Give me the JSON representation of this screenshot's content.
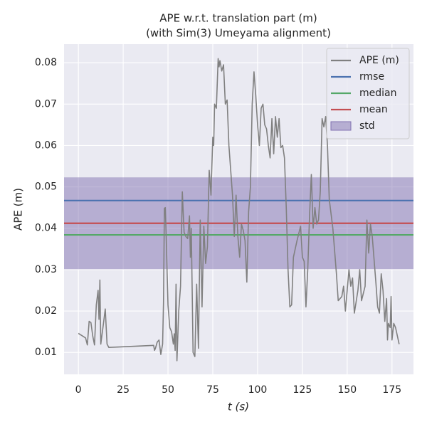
{
  "chart_data": {
    "type": "line",
    "title": "APE w.r.t. translation part (m)",
    "subtitle": "(with Sim(3) Umeyama alignment)",
    "xlabel": "t (s)",
    "ylabel": "APE (m)",
    "xlim": [
      -8,
      187
    ],
    "ylim": [
      0.0047,
      0.0845
    ],
    "xticks": [
      0,
      25,
      50,
      75,
      100,
      125,
      150,
      175
    ],
    "yticks": [
      0.01,
      0.02,
      0.03,
      0.04,
      0.05,
      0.06,
      0.07,
      0.08
    ],
    "grid": true,
    "legend": "upper right",
    "series": [
      {
        "name": "APE (m)",
        "color": "#808080",
        "x": [
          0,
          4,
          5,
          6,
          7,
          8,
          9,
          10,
          11,
          11.5,
          12,
          12.5,
          14,
          15,
          16,
          17,
          42,
          42.5,
          43,
          44,
          45,
          46,
          47,
          47.5,
          48,
          48.5,
          49,
          50,
          51,
          52,
          53,
          53.5,
          54,
          54.5,
          55,
          56,
          57,
          58,
          59,
          60,
          61,
          62,
          62.5,
          63,
          64,
          65,
          66,
          67,
          68,
          69,
          70,
          71,
          72,
          73,
          74,
          75,
          75.5,
          76,
          77,
          78,
          78.5,
          79,
          80,
          81,
          82,
          83,
          84,
          85,
          86,
          87,
          88,
          89,
          90,
          91,
          92,
          93,
          94,
          95,
          96,
          97,
          98,
          99,
          100,
          101,
          102,
          103,
          104,
          105,
          106,
          107,
          108,
          109,
          110,
          111,
          112,
          113,
          114,
          115,
          116,
          117,
          118,
          119,
          120,
          122,
          124,
          125,
          126,
          127,
          128,
          129,
          130,
          131,
          132,
          133,
          134,
          135,
          136,
          137,
          138,
          139,
          140,
          142,
          144,
          145,
          147,
          148,
          149,
          151,
          152,
          153,
          154,
          156,
          157,
          158,
          160,
          161,
          162,
          163,
          164,
          166,
          167,
          168,
          169,
          170,
          171,
          172,
          172.5,
          173,
          174,
          174.5,
          175,
          176,
          177,
          179
        ],
        "values": [
          0.0146,
          0.0135,
          0.0118,
          0.0175,
          0.0172,
          0.014,
          0.0118,
          0.0215,
          0.025,
          0.018,
          0.0275,
          0.012,
          0.017,
          0.0205,
          0.012,
          0.0112,
          0.0117,
          0.0105,
          0.011,
          0.0125,
          0.013,
          0.0095,
          0.012,
          0.022,
          0.0448,
          0.045,
          0.038,
          0.0215,
          0.016,
          0.015,
          0.012,
          0.0145,
          0.0105,
          0.0265,
          0.008,
          0.02,
          0.026,
          0.0488,
          0.039,
          0.038,
          0.0375,
          0.043,
          0.033,
          0.04,
          0.01,
          0.009,
          0.0265,
          0.011,
          0.042,
          0.021,
          0.0405,
          0.0315,
          0.0355,
          0.054,
          0.048,
          0.062,
          0.06,
          0.07,
          0.069,
          0.081,
          0.079,
          0.0805,
          0.078,
          0.0795,
          0.07,
          0.071,
          0.06,
          0.054,
          0.048,
          0.038,
          0.048,
          0.038,
          0.033,
          0.041,
          0.0395,
          0.037,
          0.027,
          0.044,
          0.05,
          0.07,
          0.0778,
          0.072,
          0.065,
          0.06,
          0.069,
          0.07,
          0.065,
          0.064,
          0.06,
          0.057,
          0.0665,
          0.058,
          0.067,
          0.062,
          0.0665,
          0.0595,
          0.06,
          0.057,
          0.045,
          0.03,
          0.021,
          0.0215,
          0.033,
          0.037,
          0.0405,
          0.033,
          0.032,
          0.021,
          0.03,
          0.043,
          0.053,
          0.04,
          0.045,
          0.041,
          0.042,
          0.049,
          0.0665,
          0.0645,
          0.067,
          0.06,
          0.047,
          0.04,
          0.029,
          0.0225,
          0.0235,
          0.026,
          0.02,
          0.03,
          0.026,
          0.028,
          0.0195,
          0.025,
          0.03,
          0.0225,
          0.026,
          0.042,
          0.034,
          0.041,
          0.038,
          0.027,
          0.021,
          0.0195,
          0.029,
          0.025,
          0.0175,
          0.023,
          0.013,
          0.017,
          0.016,
          0.0235,
          0.013,
          0.017,
          0.016,
          0.012
        ]
      }
    ],
    "stats": [
      {
        "name": "rmse",
        "color": "#4c72b0",
        "kind": "line",
        "value": 0.0467
      },
      {
        "name": "median",
        "color": "#55a868",
        "kind": "line",
        "value": 0.0384
      },
      {
        "name": "mean",
        "color": "#c44e52",
        "kind": "line",
        "value": 0.0412
      },
      {
        "name": "std",
        "color": "#8172b2",
        "kind": "band",
        "value": 0.0111
      }
    ]
  }
}
